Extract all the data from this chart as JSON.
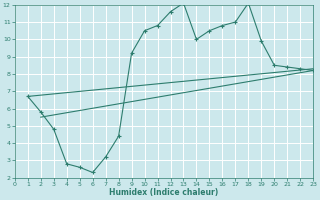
{
  "line1_x": [
    1,
    2,
    3,
    4,
    5,
    6,
    7,
    8,
    9,
    10,
    11,
    12,
    13,
    14,
    15,
    16,
    17,
    18,
    19,
    20,
    21,
    22,
    23
  ],
  "line1_y": [
    6.7,
    5.8,
    4.8,
    2.8,
    2.6,
    2.3,
    3.2,
    4.4,
    9.2,
    10.5,
    10.8,
    11.6,
    12.1,
    10.0,
    10.5,
    10.8,
    11.0,
    12.1,
    9.9,
    8.5,
    8.4,
    8.3,
    8.2
  ],
  "line2_x": [
    1,
    23
  ],
  "line2_y": [
    6.7,
    8.3
  ],
  "line3_x": [
    2,
    23
  ],
  "line3_y": [
    5.5,
    8.2
  ],
  "color": "#2d7d6e",
  "bg_color": "#cce8ec",
  "grid_color": "#ffffff",
  "xlabel": "Humidex (Indice chaleur)",
  "xlim": [
    0,
    23
  ],
  "ylim": [
    2,
    12
  ],
  "xticks": [
    0,
    1,
    2,
    3,
    4,
    5,
    6,
    7,
    8,
    9,
    10,
    11,
    12,
    13,
    14,
    15,
    16,
    17,
    18,
    19,
    20,
    21,
    22,
    23
  ],
  "yticks": [
    2,
    3,
    4,
    5,
    6,
    7,
    8,
    9,
    10,
    11,
    12
  ],
  "marker": "+"
}
